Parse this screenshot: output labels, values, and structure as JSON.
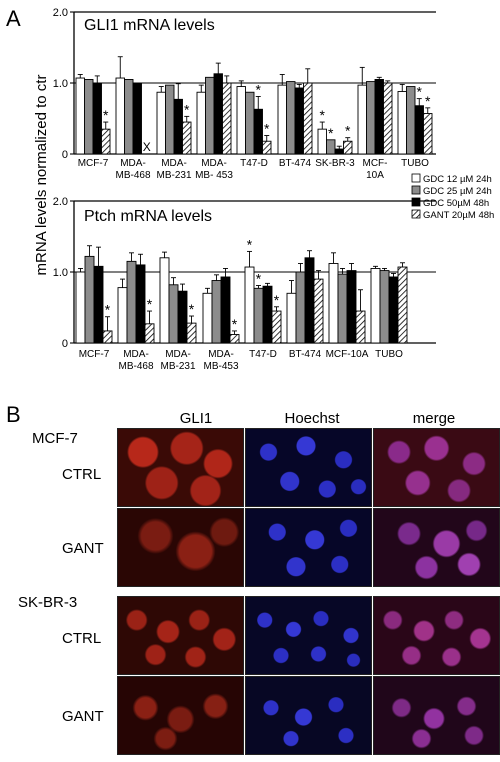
{
  "panel_a_letter": "A",
  "panel_b_letter": "B",
  "shared_ylabel": "mRNA levels normalized to ctr",
  "legend": [
    {
      "name": "GDC 12 µM 24h",
      "pattern": "white"
    },
    {
      "name": "GDC 25 µM 24h",
      "pattern": "gray"
    },
    {
      "name": "GDC 50µM 48h",
      "pattern": "black"
    },
    {
      "name": "GANT 20µM 48h",
      "pattern": "hatch"
    }
  ],
  "chart_data": [
    {
      "type": "bar",
      "title": "GLI1 mRNA levels",
      "ylabel": "mRNA levels normalized to ctr",
      "ylim": [
        0,
        2.0
      ],
      "yticks": [
        "2.0",
        "1.0",
        "0"
      ],
      "reference_line": 1.0,
      "categories": [
        [
          "MCF-7"
        ],
        [
          "MDA-",
          "MB-468"
        ],
        [
          "MDA-",
          "MB-231"
        ],
        [
          "MDA-",
          "MB- 453"
        ],
        [
          "T47-D"
        ],
        [
          "BT-474"
        ],
        [
          "SK-BR-3"
        ],
        [
          "MCF-",
          "10A"
        ],
        [
          "TUBO"
        ]
      ],
      "series": [
        {
          "name": "GDC 12 µM 24h",
          "values": [
            1.07,
            1.07,
            0.87,
            0.87,
            0.95,
            0.97,
            0.35,
            0.97,
            0.88
          ],
          "errors": [
            0.05,
            0.3,
            0.08,
            0.1,
            0.08,
            0.15,
            0.1,
            0.25,
            0.1
          ]
        },
        {
          "name": "GDC 25 µM 24h",
          "values": [
            1.05,
            1.05,
            0.97,
            1.08,
            0.87,
            1.02,
            0.2,
            1.02,
            0.95
          ]
        },
        {
          "name": "GDC 50µM 48h",
          "values": [
            1.0,
            1.0,
            0.77,
            1.13,
            0.63,
            0.93,
            0.07,
            1.05,
            0.68
          ],
          "errors": [
            0.1,
            0,
            0.22,
            0.15,
            0.18,
            0.05,
            0.04,
            0.03,
            0.1
          ]
        },
        {
          "name": "GANT 20µM 48h",
          "values": [
            0.35,
            null,
            0.45,
            1.0,
            0.18,
            1.0,
            0.18,
            1.0,
            0.57
          ],
          "errors": [
            0.1,
            0,
            0.08,
            0.1,
            0.08,
            0.2,
            0.05,
            0.03,
            0.08
          ]
        }
      ],
      "missing_marker": "X",
      "significant": [
        [
          "",
          "",
          "",
          "*"
        ],
        [
          "",
          "",
          "",
          ""
        ],
        [
          "",
          "",
          "",
          "*"
        ],
        [
          "",
          "",
          "",
          ""
        ],
        [
          "",
          "",
          "*",
          "*"
        ],
        [
          "",
          "",
          "",
          ""
        ],
        [
          "*",
          "*",
          "",
          "*"
        ],
        [
          "",
          "",
          "",
          ""
        ],
        [
          "",
          "",
          "*",
          "*"
        ]
      ]
    },
    {
      "type": "bar",
      "title": "Ptch mRNA levels",
      "ylabel": "mRNA levels normalized to ctr",
      "ylim": [
        0,
        2.0
      ],
      "yticks": [
        "2.0",
        "1.0",
        "0"
      ],
      "reference_line": 1.0,
      "categories": [
        [
          "MCF-7"
        ],
        [
          "MDA-",
          "MB-468"
        ],
        [
          "MDA-",
          "MB-231"
        ],
        [
          "MDA-",
          "MB-453"
        ],
        [
          "T47-D"
        ],
        [
          "BT-474"
        ],
        [
          "MCF-10A"
        ],
        [
          "TUBO"
        ]
      ],
      "series": [
        {
          "name": "GDC 12 µM 24h",
          "values": [
            1.0,
            0.78,
            1.2,
            0.7,
            1.07,
            0.7,
            1.12,
            1.05
          ],
          "errors": [
            0.05,
            0.12,
            0.08,
            0.07,
            0.22,
            0.18,
            0.15,
            0.03
          ]
        },
        {
          "name": "GDC 25 µM 24h",
          "values": [
            1.22,
            1.15,
            0.82,
            0.88,
            0.77,
            1.0,
            0.97,
            1.02
          ],
          "errors": [
            0.15,
            0.12,
            0.1,
            0.08,
            0.04,
            0.12,
            0.08,
            0.03
          ]
        },
        {
          "name": "GDC 50µM 48h",
          "values": [
            1.08,
            1.1,
            0.73,
            0.93,
            0.8,
            1.2,
            1.02,
            0.93
          ],
          "errors": [
            0.27,
            0.15,
            0.1,
            0.12,
            0.04,
            0.1,
            0.1,
            0.05
          ]
        },
        {
          "name": "GANT 20µM 48h",
          "values": [
            0.17,
            0.27,
            0.28,
            0.12,
            0.45,
            0.9,
            0.45,
            1.07
          ],
          "errors": [
            0.2,
            0.18,
            0.1,
            0.05,
            0.06,
            0.12,
            0.3,
            0.06
          ]
        }
      ],
      "significant": [
        [
          "",
          "",
          "",
          "*"
        ],
        [
          "",
          "",
          "",
          "*"
        ],
        [
          "",
          "",
          "",
          "*"
        ],
        [
          "",
          "",
          "",
          "*"
        ],
        [
          "*",
          "*",
          "",
          "*"
        ],
        [
          "",
          "",
          "",
          ""
        ],
        [
          "",
          "",
          "",
          ""
        ],
        [
          "",
          "",
          "",
          ""
        ]
      ]
    }
  ],
  "panel_b": {
    "column_headers": [
      "GLI1",
      "Hoechst",
      "merge"
    ],
    "cell_lines": [
      {
        "name": "MCF-7",
        "rows": [
          "CTRL",
          "GANT"
        ]
      },
      {
        "name": "SK-BR-3",
        "rows": [
          "CTRL",
          "GANT"
        ]
      }
    ]
  },
  "colors": {
    "gli1_stain": "#d22a1c",
    "hoechst_stain": "#3a3cf0",
    "merge_stain": "#b03aa0",
    "bar_gray": "#8c8c8c",
    "bar_black": "#000000"
  }
}
